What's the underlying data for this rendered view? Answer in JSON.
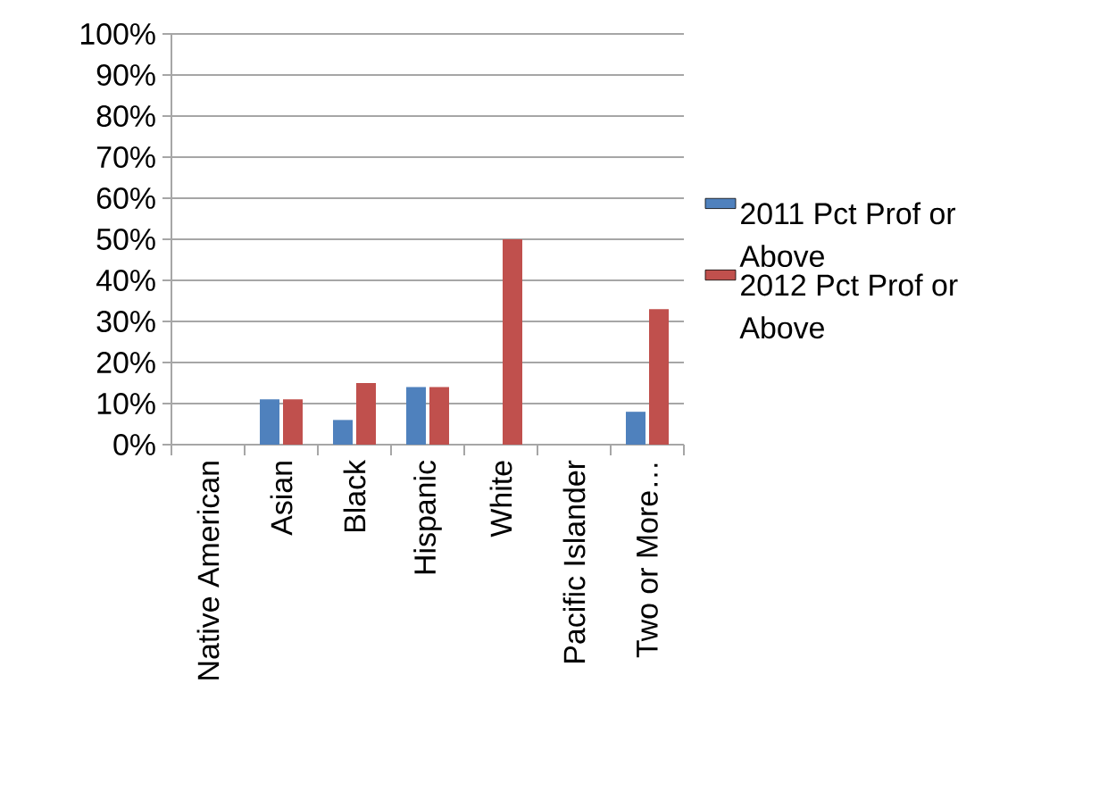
{
  "chart_data": {
    "type": "bar",
    "categories": [
      "Native American",
      "Asian",
      "Black",
      "Hispanic",
      "White",
      "Pacific Islander",
      "Two or More…"
    ],
    "series": [
      {
        "name": "2011 Pct Prof or Above",
        "color": "#4f81bd",
        "values": [
          null,
          11,
          6,
          14,
          null,
          null,
          8
        ]
      },
      {
        "name": "2012 Pct Prof or Above",
        "color": "#c0504d",
        "values": [
          null,
          11,
          15,
          14,
          50,
          null,
          33
        ]
      }
    ],
    "ylim": [
      0,
      100
    ],
    "yticks": [
      {
        "value": 0,
        "label": "0%"
      },
      {
        "value": 10,
        "label": "10%"
      },
      {
        "value": 20,
        "label": "20%"
      },
      {
        "value": 30,
        "label": "30%"
      },
      {
        "value": 40,
        "label": "40%"
      },
      {
        "value": 50,
        "label": "50%"
      },
      {
        "value": 60,
        "label": "60%"
      },
      {
        "value": 70,
        "label": "70%"
      },
      {
        "value": 80,
        "label": "80%"
      },
      {
        "value": 90,
        "label": "90%"
      },
      {
        "value": 100,
        "label": "100%"
      }
    ],
    "grid": "y",
    "legend": "right"
  }
}
